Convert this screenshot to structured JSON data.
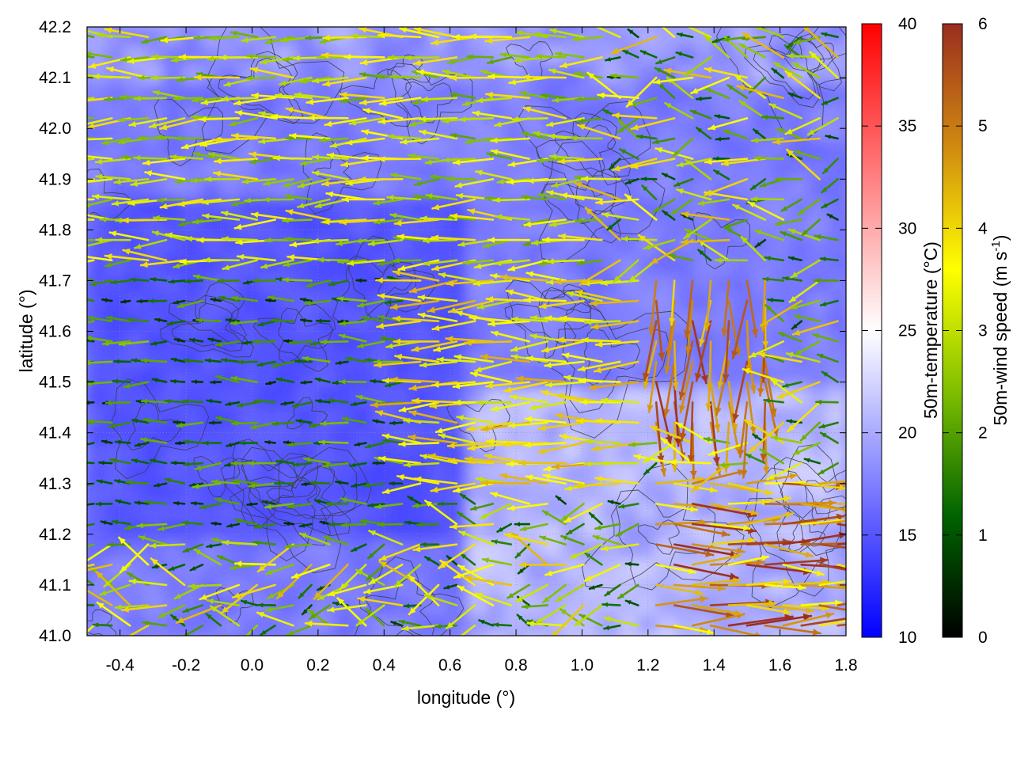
{
  "chart_data": {
    "type": "heatmap",
    "overlays": [
      "wind-vector",
      "terrain-contour"
    ],
    "xlabel": "longitude (°)",
    "ylabel": "latitude (°)",
    "xlim": [
      -0.5,
      1.8
    ],
    "ylim": [
      41.0,
      42.2
    ],
    "x_ticks": [
      -0.4,
      -0.2,
      0.0,
      0.2,
      0.4,
      0.6,
      0.8,
      1.0,
      1.2,
      1.4,
      1.6,
      1.8
    ],
    "x_tick_labels": [
      "-0.4",
      "-0.2",
      "0.0",
      "0.2",
      "0.4",
      "0.6",
      "0.8",
      "1.0",
      "1.2",
      "1.4",
      "1.6",
      "1.8"
    ],
    "y_ticks": [
      41.0,
      41.1,
      41.2,
      41.3,
      41.4,
      41.5,
      41.6,
      41.7,
      41.8,
      41.9,
      42.0,
      42.1,
      42.2
    ],
    "y_tick_labels": [
      "41.0",
      "41.1",
      "41.2",
      "41.3",
      "41.4",
      "41.5",
      "41.6",
      "41.7",
      "41.8",
      "41.9",
      "42.0",
      "42.1",
      "42.2"
    ],
    "grid": true,
    "temperature_colorbar": {
      "label": "50m-temperature (°C)",
      "range": [
        10,
        40
      ],
      "ticks": [
        10,
        15,
        20,
        25,
        30,
        35,
        40
      ],
      "tick_labels": [
        "10",
        "15",
        "20",
        "25",
        "30",
        "35",
        "40"
      ],
      "colors": [
        "#0000ff",
        "#ffffff",
        "#ff0000"
      ]
    },
    "windspeed_colorbar": {
      "label": "50m-wind speed (m s-1)",
      "label_main": "50m-wind speed (m s",
      "label_sup": "-1",
      "label_end": ")",
      "range": [
        0,
        6
      ],
      "ticks": [
        0,
        1,
        2,
        3,
        4,
        5,
        6
      ],
      "tick_labels": [
        "0",
        "1",
        "2",
        "3",
        "4",
        "5",
        "6"
      ],
      "colors": [
        "#000000",
        "#006400",
        "#7fbf00",
        "#ffff00",
        "#d08a10",
        "#9b2d20"
      ]
    },
    "temperature_field": {
      "typical_range": [
        14,
        21
      ],
      "warm_region": {
        "lon": [
          0.6,
          1.8
        ],
        "lat": [
          41.0,
          41.5
        ],
        "temp": 21
      },
      "cool_region": {
        "lon": [
          -0.5,
          0.6
        ],
        "lat": [
          41.2,
          41.9
        ],
        "temp": 14
      }
    },
    "wind_regions": [
      {
        "lon": [
          -0.5,
          1.1
        ],
        "lat": [
          41.7,
          42.2
        ],
        "direction": "westward",
        "speed_range": [
          2,
          4
        ]
      },
      {
        "lon": [
          0.5,
          1.2
        ],
        "lat": [
          41.3,
          41.7
        ],
        "direction": "westward",
        "speed_range": [
          3,
          4.5
        ]
      },
      {
        "lon": [
          -0.5,
          0.5
        ],
        "lat": [
          41.2,
          41.7
        ],
        "direction": "westward",
        "speed_range": [
          0.5,
          2.5
        ]
      },
      {
        "lon": [
          1.2,
          1.6
        ],
        "lat": [
          41.4,
          41.7
        ],
        "direction": "southward",
        "speed_range": [
          4,
          6
        ]
      },
      {
        "lon": [
          1.2,
          1.8
        ],
        "lat": [
          41.0,
          41.3
        ],
        "direction": "eastward",
        "speed_range": [
          3.5,
          6
        ]
      }
    ]
  }
}
